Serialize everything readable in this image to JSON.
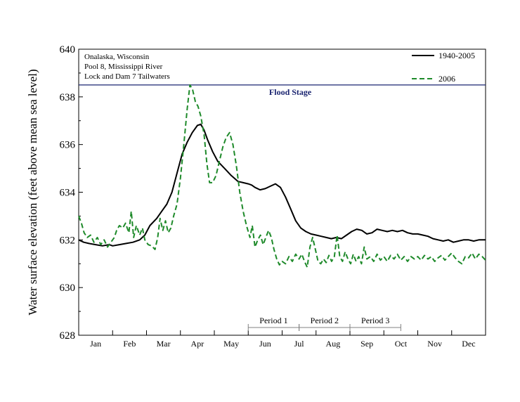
{
  "chart_data": {
    "type": "line",
    "ylabel": "Water surface elevation (feet above mean sea level)",
    "xlabel": "",
    "ylim": [
      628,
      640
    ],
    "yticks": [
      628,
      630,
      632,
      634,
      636,
      638,
      640
    ],
    "xlim": [
      0,
      12
    ],
    "months": [
      "Jan",
      "Feb",
      "Mar",
      "Apr",
      "May",
      "Jun",
      "Jul",
      "Aug",
      "Sep",
      "Oct",
      "Nov",
      "Dec"
    ],
    "annotation_lines": [
      "Onalaska, Wisconsin",
      "Pool 8, Mississippi River",
      "Lock and Dam 7 Tailwaters"
    ],
    "legend_position": "top-right",
    "grid": false,
    "reference_line": {
      "label": "Flood Stage",
      "y": 638.5,
      "color": "#1a2470"
    },
    "periods": [
      {
        "label": "Period 1",
        "start": 5.0,
        "end": 6.5
      },
      {
        "label": "Period 2",
        "start": 6.5,
        "end": 8.0
      },
      {
        "label": "Period 3",
        "start": 8.0,
        "end": 9.5
      }
    ],
    "series": [
      {
        "name": "1940-2005",
        "color": "#000000",
        "dash": "",
        "points": [
          [
            0.0,
            632.0
          ],
          [
            0.15,
            631.9
          ],
          [
            0.3,
            631.85
          ],
          [
            0.5,
            631.8
          ],
          [
            0.7,
            631.75
          ],
          [
            0.9,
            631.8
          ],
          [
            1.0,
            631.75
          ],
          [
            1.2,
            631.8
          ],
          [
            1.4,
            631.85
          ],
          [
            1.6,
            631.9
          ],
          [
            1.8,
            632.0
          ],
          [
            1.95,
            632.2
          ],
          [
            2.1,
            632.6
          ],
          [
            2.3,
            632.9
          ],
          [
            2.45,
            633.2
          ],
          [
            2.6,
            633.5
          ],
          [
            2.75,
            634.0
          ],
          [
            2.9,
            634.8
          ],
          [
            3.05,
            635.6
          ],
          [
            3.2,
            636.1
          ],
          [
            3.35,
            636.5
          ],
          [
            3.5,
            636.8
          ],
          [
            3.6,
            636.85
          ],
          [
            3.7,
            636.6
          ],
          [
            3.8,
            636.2
          ],
          [
            3.95,
            635.7
          ],
          [
            4.1,
            635.3
          ],
          [
            4.3,
            635.0
          ],
          [
            4.5,
            634.7
          ],
          [
            4.7,
            634.45
          ],
          [
            4.85,
            634.4
          ],
          [
            5.0,
            634.35
          ],
          [
            5.1,
            634.3
          ],
          [
            5.2,
            634.2
          ],
          [
            5.35,
            634.1
          ],
          [
            5.5,
            634.15
          ],
          [
            5.65,
            634.25
          ],
          [
            5.8,
            634.35
          ],
          [
            5.95,
            634.2
          ],
          [
            6.1,
            633.8
          ],
          [
            6.25,
            633.3
          ],
          [
            6.4,
            632.8
          ],
          [
            6.55,
            632.5
          ],
          [
            6.7,
            632.35
          ],
          [
            6.85,
            632.25
          ],
          [
            7.0,
            632.2
          ],
          [
            7.15,
            632.15
          ],
          [
            7.3,
            632.1
          ],
          [
            7.45,
            632.05
          ],
          [
            7.6,
            632.1
          ],
          [
            7.75,
            632.05
          ],
          [
            7.9,
            632.2
          ],
          [
            8.05,
            632.35
          ],
          [
            8.2,
            632.45
          ],
          [
            8.35,
            632.4
          ],
          [
            8.5,
            632.25
          ],
          [
            8.65,
            632.3
          ],
          [
            8.8,
            632.45
          ],
          [
            8.95,
            632.4
          ],
          [
            9.1,
            632.35
          ],
          [
            9.25,
            632.4
          ],
          [
            9.4,
            632.35
          ],
          [
            9.55,
            632.4
          ],
          [
            9.7,
            632.3
          ],
          [
            9.85,
            632.25
          ],
          [
            10.0,
            632.25
          ],
          [
            10.15,
            632.2
          ],
          [
            10.3,
            632.15
          ],
          [
            10.45,
            632.05
          ],
          [
            10.6,
            632.0
          ],
          [
            10.75,
            631.95
          ],
          [
            10.9,
            632.0
          ],
          [
            11.05,
            631.9
          ],
          [
            11.2,
            631.95
          ],
          [
            11.35,
            632.0
          ],
          [
            11.5,
            632.0
          ],
          [
            11.65,
            631.95
          ],
          [
            11.8,
            632.0
          ],
          [
            12.0,
            632.0
          ]
        ]
      },
      {
        "name": "2006",
        "color": "#1e8a2a",
        "dash": "7,4",
        "points": [
          [
            0.0,
            633.0
          ],
          [
            0.08,
            632.7
          ],
          [
            0.16,
            632.3
          ],
          [
            0.25,
            632.1
          ],
          [
            0.35,
            632.2
          ],
          [
            0.45,
            631.9
          ],
          [
            0.55,
            632.1
          ],
          [
            0.65,
            631.8
          ],
          [
            0.75,
            632.0
          ],
          [
            0.85,
            631.7
          ],
          [
            0.95,
            631.9
          ],
          [
            1.05,
            632.1
          ],
          [
            1.12,
            632.4
          ],
          [
            1.2,
            632.6
          ],
          [
            1.3,
            632.5
          ],
          [
            1.38,
            632.7
          ],
          [
            1.48,
            632.3
          ],
          [
            1.55,
            633.2
          ],
          [
            1.62,
            632.1
          ],
          [
            1.7,
            632.6
          ],
          [
            1.8,
            632.2
          ],
          [
            1.88,
            632.5
          ],
          [
            1.95,
            632.0
          ],
          [
            2.05,
            631.8
          ],
          [
            2.15,
            631.75
          ],
          [
            2.25,
            631.6
          ],
          [
            2.33,
            632.1
          ],
          [
            2.4,
            632.9
          ],
          [
            2.48,
            632.4
          ],
          [
            2.56,
            632.8
          ],
          [
            2.64,
            632.3
          ],
          [
            2.72,
            632.5
          ],
          [
            2.8,
            633.0
          ],
          [
            2.9,
            633.5
          ],
          [
            3.0,
            634.6
          ],
          [
            3.1,
            636.0
          ],
          [
            3.2,
            637.5
          ],
          [
            3.28,
            638.5
          ],
          [
            3.36,
            638.3
          ],
          [
            3.44,
            637.8
          ],
          [
            3.52,
            637.6
          ],
          [
            3.6,
            637.2
          ],
          [
            3.7,
            636.4
          ],
          [
            3.78,
            635.2
          ],
          [
            3.86,
            634.4
          ],
          [
            3.95,
            634.4
          ],
          [
            4.05,
            634.7
          ],
          [
            4.15,
            635.3
          ],
          [
            4.25,
            635.9
          ],
          [
            4.35,
            636.3
          ],
          [
            4.45,
            636.5
          ],
          [
            4.55,
            636.0
          ],
          [
            4.65,
            635.1
          ],
          [
            4.75,
            634.0
          ],
          [
            4.85,
            633.2
          ],
          [
            4.95,
            632.6
          ],
          [
            5.05,
            632.1
          ],
          [
            5.12,
            632.6
          ],
          [
            5.2,
            631.7
          ],
          [
            5.28,
            632.0
          ],
          [
            5.36,
            632.2
          ],
          [
            5.44,
            631.8
          ],
          [
            5.52,
            632.1
          ],
          [
            5.6,
            632.4
          ],
          [
            5.68,
            632.1
          ],
          [
            5.76,
            631.6
          ],
          [
            5.84,
            631.2
          ],
          [
            5.92,
            630.95
          ],
          [
            6.0,
            631.1
          ],
          [
            6.1,
            631.0
          ],
          [
            6.2,
            631.3
          ],
          [
            6.3,
            631.1
          ],
          [
            6.4,
            631.4
          ],
          [
            6.5,
            631.2
          ],
          [
            6.58,
            631.4
          ],
          [
            6.66,
            631.1
          ],
          [
            6.74,
            630.85
          ],
          [
            6.82,
            631.7
          ],
          [
            6.9,
            632.1
          ],
          [
            6.98,
            631.6
          ],
          [
            7.06,
            631.1
          ],
          [
            7.14,
            631.0
          ],
          [
            7.22,
            631.2
          ],
          [
            7.3,
            631.05
          ],
          [
            7.38,
            631.35
          ],
          [
            7.46,
            631.1
          ],
          [
            7.54,
            631.3
          ],
          [
            7.62,
            632.2
          ],
          [
            7.7,
            631.3
          ],
          [
            7.78,
            631.1
          ],
          [
            7.86,
            631.5
          ],
          [
            7.94,
            631.2
          ],
          [
            8.02,
            631.0
          ],
          [
            8.1,
            631.4
          ],
          [
            8.18,
            631.1
          ],
          [
            8.26,
            631.3
          ],
          [
            8.34,
            631.0
          ],
          [
            8.42,
            631.7
          ],
          [
            8.5,
            631.2
          ],
          [
            8.6,
            631.3
          ],
          [
            8.7,
            631.1
          ],
          [
            8.8,
            631.4
          ],
          [
            8.9,
            631.15
          ],
          [
            9.0,
            631.3
          ],
          [
            9.1,
            631.1
          ],
          [
            9.2,
            631.35
          ],
          [
            9.3,
            631.2
          ],
          [
            9.4,
            631.4
          ],
          [
            9.5,
            631.15
          ],
          [
            9.6,
            631.3
          ],
          [
            9.7,
            631.1
          ],
          [
            9.8,
            631.3
          ],
          [
            9.9,
            631.2
          ],
          [
            10.0,
            631.3
          ],
          [
            10.1,
            631.15
          ],
          [
            10.2,
            631.35
          ],
          [
            10.3,
            631.2
          ],
          [
            10.4,
            631.3
          ],
          [
            10.5,
            631.1
          ],
          [
            10.6,
            631.25
          ],
          [
            10.7,
            631.35
          ],
          [
            10.8,
            631.15
          ],
          [
            10.9,
            631.3
          ],
          [
            11.0,
            631.45
          ],
          [
            11.1,
            631.25
          ],
          [
            11.2,
            631.1
          ],
          [
            11.3,
            631.0
          ],
          [
            11.4,
            631.3
          ],
          [
            11.5,
            631.25
          ],
          [
            11.6,
            631.45
          ],
          [
            11.7,
            631.2
          ],
          [
            11.8,
            631.4
          ],
          [
            11.9,
            631.3
          ],
          [
            12.0,
            631.15
          ]
        ]
      }
    ]
  }
}
